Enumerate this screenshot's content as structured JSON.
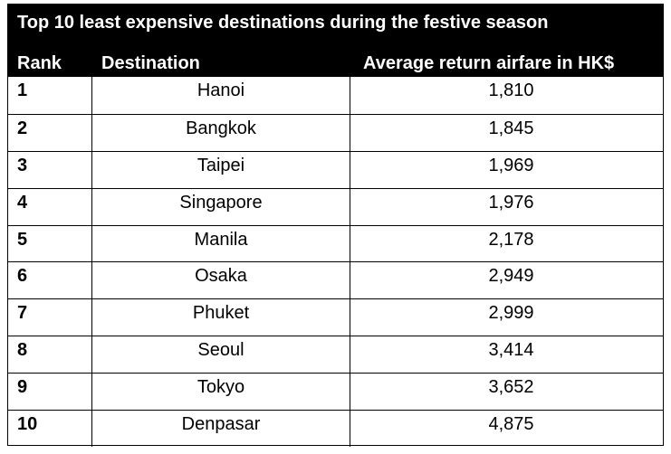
{
  "table": {
    "title": "Top 10 least expensive destinations during the festive season",
    "headers": {
      "rank": "Rank",
      "destination": "Destination",
      "airfare": "Average return airfare in HK$"
    },
    "rows": [
      {
        "rank": "1",
        "destination": "Hanoi",
        "airfare": "1,810"
      },
      {
        "rank": "2",
        "destination": "Bangkok",
        "airfare": "1,845"
      },
      {
        "rank": "3",
        "destination": "Taipei",
        "airfare": "1,969"
      },
      {
        "rank": "4",
        "destination": "Singapore",
        "airfare": "1,976"
      },
      {
        "rank": "5",
        "destination": "Manila",
        "airfare": "2,178"
      },
      {
        "rank": "6",
        "destination": "Osaka",
        "airfare": "2,949"
      },
      {
        "rank": "7",
        "destination": "Phuket",
        "airfare": "2,999"
      },
      {
        "rank": "8",
        "destination": "Seoul",
        "airfare": "3,414"
      },
      {
        "rank": "9",
        "destination": "Tokyo",
        "airfare": "3,652"
      },
      {
        "rank": "10",
        "destination": "Denpasar",
        "airfare": "4,875"
      }
    ]
  }
}
